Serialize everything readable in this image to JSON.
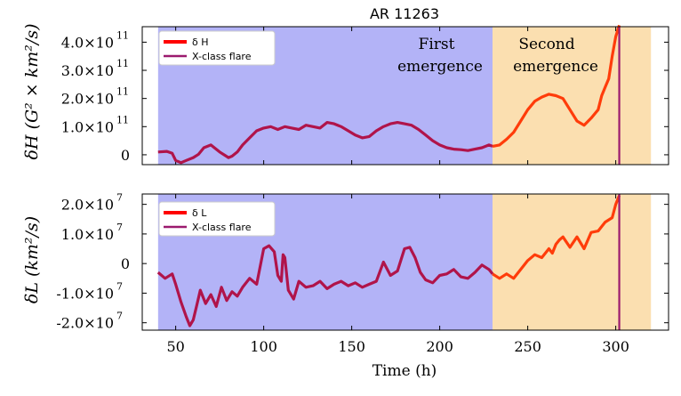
{
  "chart_data": {
    "title": "AR 11263",
    "xlabel": "Time (h)",
    "xlim": [
      31,
      330
    ],
    "xticks": [
      50,
      100,
      150,
      200,
      250,
      300
    ],
    "phases": [
      {
        "label_line1": "First",
        "label_line2": "emergence",
        "start": 40,
        "end": 230,
        "color": "#b3b3f7"
      },
      {
        "label_line1": "Second",
        "label_line2": "emergence",
        "start": 230,
        "end": 320,
        "color": "#fbdfb0"
      }
    ],
    "flare_time": 302,
    "series_colors": {
      "first": "#b0144a",
      "second": "#ff3c0a",
      "flare": "#9b1a6e"
    },
    "panels": [
      {
        "type": "line",
        "ylabel": "δH (G² × km²/s)",
        "ylim": [
          -0.35,
          4.55
        ],
        "yunit_exp": "11",
        "yticks": [
          {
            "value": 4.0,
            "label": "4.0×10"
          },
          {
            "value": 3.0,
            "label": "3.0×10"
          },
          {
            "value": 2.0,
            "label": "2.0×10"
          },
          {
            "value": 1.0,
            "label": "1.0×10"
          },
          {
            "value": 0,
            "label": "0"
          }
        ],
        "legend": [
          "δ H",
          "X-class flare"
        ],
        "x": [
          40,
          45,
          48,
          50,
          53,
          56,
          60,
          63,
          66,
          70,
          75,
          80,
          82,
          85,
          88,
          92,
          96,
          100,
          104,
          108,
          112,
          116,
          120,
          124,
          128,
          132,
          136,
          140,
          144,
          148,
          152,
          156,
          160,
          164,
          168,
          172,
          176,
          180,
          184,
          188,
          192,
          196,
          200,
          204,
          208,
          212,
          216,
          220,
          224,
          228,
          230,
          234,
          238,
          242,
          246,
          250,
          254,
          258,
          262,
          266,
          270,
          274,
          278,
          282,
          286,
          290,
          292,
          294,
          296,
          298,
          300,
          302
        ],
        "values": [
          0.1,
          0.12,
          0.05,
          -0.2,
          -0.28,
          -0.2,
          -0.1,
          0.02,
          0.25,
          0.35,
          0.1,
          -0.1,
          -0.05,
          0.1,
          0.35,
          0.6,
          0.85,
          0.95,
          1.0,
          0.9,
          1.0,
          0.95,
          0.9,
          1.05,
          1.0,
          0.95,
          1.15,
          1.1,
          1.0,
          0.85,
          0.7,
          0.6,
          0.65,
          0.85,
          1.0,
          1.1,
          1.15,
          1.1,
          1.05,
          0.9,
          0.7,
          0.5,
          0.35,
          0.25,
          0.2,
          0.18,
          0.15,
          0.2,
          0.25,
          0.35,
          0.3,
          0.35,
          0.55,
          0.8,
          1.2,
          1.6,
          1.9,
          2.05,
          2.15,
          2.1,
          2.0,
          1.6,
          1.2,
          1.05,
          1.3,
          1.6,
          2.1,
          2.4,
          2.7,
          3.5,
          4.2,
          4.6
        ]
      },
      {
        "type": "line",
        "ylabel": "δL (km²/s)",
        "ylim": [
          -2.25,
          2.35
        ],
        "yunit_exp": "7",
        "yticks": [
          {
            "value": 2.0,
            "label": "2.0×10"
          },
          {
            "value": 1.0,
            "label": "1.0×10"
          },
          {
            "value": 0,
            "label": "0"
          },
          {
            "value": -1.0,
            "label": "-1.0×10"
          },
          {
            "value": -2.0,
            "label": "-2.0×10"
          }
        ],
        "legend": [
          "δ L",
          "X-class flare"
        ],
        "x": [
          40,
          44,
          48,
          50,
          53,
          56,
          58,
          60,
          62,
          64,
          67,
          70,
          73,
          76,
          79,
          82,
          85,
          88,
          92,
          96,
          100,
          103,
          106,
          108,
          110,
          111,
          112,
          114,
          117,
          120,
          124,
          128,
          132,
          136,
          140,
          144,
          148,
          152,
          156,
          160,
          164,
          168,
          172,
          176,
          180,
          183,
          186,
          189,
          192,
          196,
          200,
          204,
          208,
          212,
          216,
          220,
          224,
          228,
          230,
          234,
          238,
          242,
          246,
          250,
          254,
          258,
          262,
          264,
          266,
          268,
          270,
          274,
          278,
          282,
          286,
          290,
          294,
          298,
          300,
          302
        ],
        "values": [
          -0.3,
          -0.5,
          -0.35,
          -0.7,
          -1.3,
          -1.8,
          -2.1,
          -1.9,
          -1.4,
          -0.9,
          -1.35,
          -1.05,
          -1.45,
          -0.8,
          -1.25,
          -0.95,
          -1.1,
          -0.8,
          -0.5,
          -0.7,
          0.5,
          0.6,
          0.4,
          -0.4,
          -0.6,
          0.3,
          0.2,
          -0.9,
          -1.2,
          -0.6,
          -0.8,
          -0.75,
          -0.6,
          -0.85,
          -0.7,
          -0.6,
          -0.75,
          -0.65,
          -0.8,
          -0.7,
          -0.6,
          0.05,
          -0.4,
          -0.25,
          0.5,
          0.55,
          0.2,
          -0.3,
          -0.55,
          -0.65,
          -0.4,
          -0.35,
          -0.2,
          -0.45,
          -0.5,
          -0.3,
          -0.05,
          -0.2,
          -0.35,
          -0.5,
          -0.35,
          -0.5,
          -0.2,
          0.1,
          0.3,
          0.2,
          0.5,
          0.35,
          0.65,
          0.8,
          0.9,
          0.55,
          0.9,
          0.5,
          1.05,
          1.1,
          1.4,
          1.55,
          2.0,
          2.3
        ]
      }
    ]
  }
}
